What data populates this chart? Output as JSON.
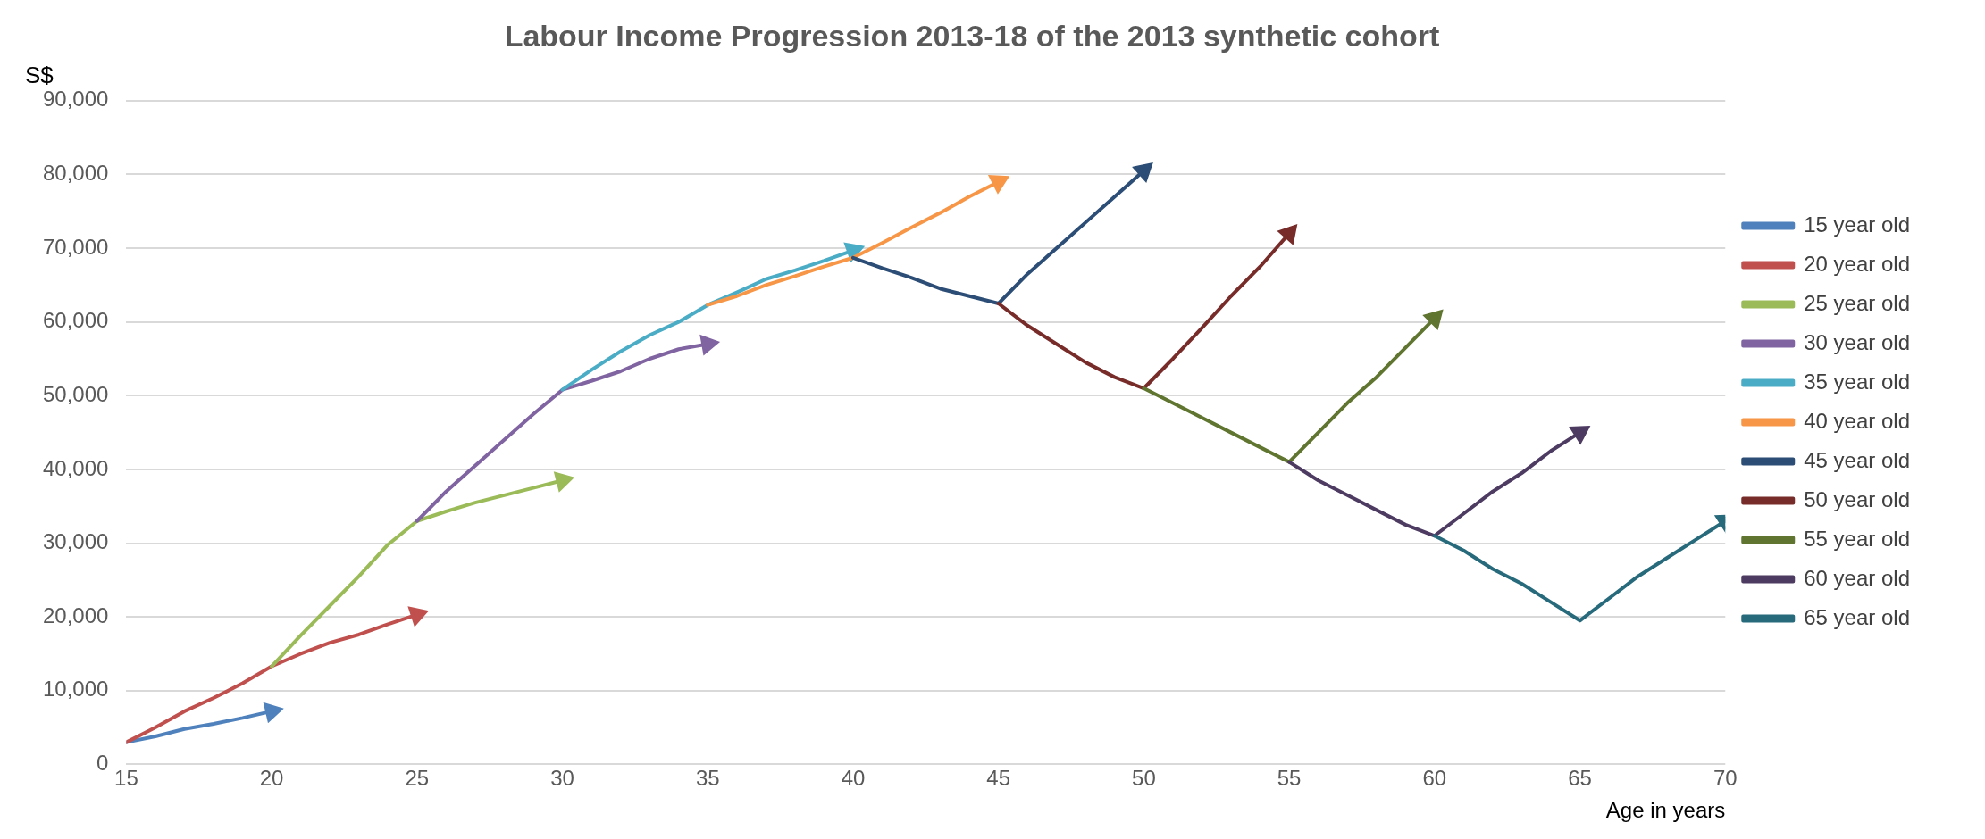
{
  "chart_data": {
    "type": "line",
    "title": "Labour Income Progression 2013-18 of the 2013 synthetic cohort",
    "ylabel": "S$",
    "xlabel": "Age in years",
    "xlim": [
      15,
      70
    ],
    "xticks": [
      15,
      20,
      25,
      30,
      35,
      40,
      45,
      50,
      55,
      60,
      65,
      70
    ],
    "ylim": [
      0,
      90000
    ],
    "yticks": [
      0,
      {
        "value": 10000,
        "label": "10,000"
      },
      {
        "value": 20000,
        "label": "20,000"
      },
      {
        "value": 30000,
        "label": "30,000"
      },
      {
        "value": 40000,
        "label": "40,000"
      },
      {
        "value": 50000,
        "label": "50,000"
      },
      {
        "value": 60000,
        "label": "60,000"
      },
      {
        "value": 70000,
        "label": "70,000"
      },
      {
        "value": 80000,
        "label": "80,000"
      },
      {
        "value": 90000,
        "label": "90,000"
      }
    ],
    "grid": "y",
    "legend": "right",
    "marker": "none",
    "line_style": "solid",
    "series": [
      {
        "name": "15 year old",
        "color": "#4f81bd",
        "x": [
          15,
          16,
          17,
          18,
          19,
          20
        ],
        "values": [
          3000,
          3800,
          4800,
          5500,
          6300,
          7200
        ]
      },
      {
        "name": "20 year old",
        "color": "#c0504d",
        "x": [
          15,
          16,
          17,
          18,
          19,
          20,
          21,
          22,
          23,
          24,
          25
        ],
        "values": [
          3000,
          5000,
          7200,
          9000,
          11000,
          13300,
          15000,
          16500,
          17600,
          19000,
          20300
        ]
      },
      {
        "name": "25 year old",
        "color": "#9bbb59",
        "x": [
          20,
          21,
          22,
          23,
          24,
          25,
          26,
          27,
          28,
          29,
          30
        ],
        "values": [
          13300,
          17500,
          21500,
          25500,
          29800,
          33000,
          34300,
          35500,
          36500,
          37500,
          38500
        ]
      },
      {
        "name": "30 year old",
        "color": "#8064a2",
        "x": [
          25,
          26,
          27,
          28,
          29,
          30,
          31,
          32,
          33,
          34,
          35
        ],
        "values": [
          33000,
          37000,
          40500,
          44000,
          47500,
          50800,
          52000,
          53300,
          55000,
          56300,
          57000
        ]
      },
      {
        "name": "35 year old",
        "color": "#4bacc6",
        "x": [
          30,
          31,
          32,
          33,
          34,
          35,
          36,
          37,
          38,
          39,
          40
        ],
        "values": [
          50800,
          53500,
          56000,
          58200,
          60000,
          62300,
          64000,
          65800,
          67000,
          68300,
          69700
        ]
      },
      {
        "name": "40 year old",
        "color": "#f79646",
        "x": [
          35,
          36,
          37,
          38,
          39,
          40,
          41,
          42,
          43,
          44,
          45
        ],
        "values": [
          62300,
          63500,
          65000,
          66200,
          67500,
          68700,
          70700,
          72800,
          74800,
          77000,
          79000
        ]
      },
      {
        "name": "45 year old",
        "color": "#2c4d75",
        "x": [
          40,
          41,
          42,
          43,
          44,
          45,
          46,
          47,
          48,
          49,
          50
        ],
        "values": [
          68700,
          67300,
          66000,
          64500,
          63500,
          62500,
          66500,
          70000,
          73500,
          77000,
          80500
        ]
      },
      {
        "name": "50 year old",
        "color": "#772c2a",
        "x": [
          45,
          46,
          47,
          48,
          49,
          50,
          51,
          52,
          53,
          54,
          55
        ],
        "values": [
          62500,
          59500,
          57000,
          54500,
          52500,
          51000,
          55000,
          59200,
          63500,
          67500,
          72000
        ]
      },
      {
        "name": "55 year old",
        "color": "#5f7530",
        "x": [
          50,
          51,
          52,
          53,
          54,
          55,
          56,
          57,
          58,
          59,
          60
        ],
        "values": [
          51000,
          49000,
          47000,
          45000,
          43000,
          41000,
          45000,
          49000,
          52500,
          56500,
          60500
        ]
      },
      {
        "name": "60 year old",
        "color": "#4d3b62",
        "x": [
          55,
          56,
          57,
          58,
          59,
          60,
          61,
          62,
          63,
          64,
          65
        ],
        "values": [
          41000,
          38500,
          36500,
          34500,
          32500,
          31000,
          34000,
          37000,
          39500,
          42500,
          45000
        ]
      },
      {
        "name": "65 year old",
        "color": "#276a7c",
        "x": [
          60,
          61,
          62,
          63,
          64,
          65,
          66,
          67,
          68,
          69,
          70
        ],
        "values": [
          31000,
          29000,
          26500,
          24500,
          22000,
          19500,
          22500,
          25500,
          28000,
          30500,
          33000
        ]
      }
    ]
  }
}
